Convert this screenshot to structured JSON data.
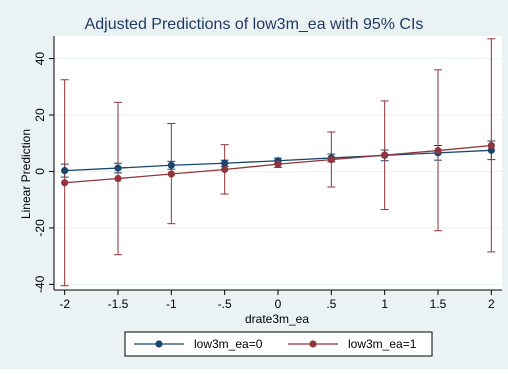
{
  "chart_data": {
    "type": "line",
    "title": "Adjusted Predictions of low3m_ea with 95% CIs",
    "xlabel": "drate3m_ea",
    "ylabel": "Linear Prediction",
    "x": [
      -2,
      -1.5,
      -1,
      -0.5,
      0,
      0.5,
      1,
      1.5,
      2
    ],
    "x_tick_labels": [
      "-2",
      "-1.5",
      "-1",
      "-.5",
      "0",
      ".5",
      "1",
      "1.5",
      "2"
    ],
    "y_ticks": [
      -40,
      -20,
      0,
      20,
      40
    ],
    "y_tick_labels": [
      "-40",
      "-20",
      "0",
      "20",
      "40"
    ],
    "xlim": [
      -2.1,
      2.1
    ],
    "ylim": [
      -42,
      48
    ],
    "grid": "horizontal",
    "legend_position": "bottom",
    "series": [
      {
        "name": "low3m_ea=0",
        "color": "#1a476f",
        "values": [
          0.3,
          1.2,
          2.2,
          2.9,
          3.8,
          4.8,
          5.7,
          6.6,
          7.5
        ],
        "ci_low": [
          -2.0,
          -0.5,
          0.8,
          1.8,
          2.9,
          3.4,
          3.8,
          4.0,
          4.2
        ],
        "ci_high": [
          2.6,
          2.9,
          3.6,
          4.0,
          4.7,
          6.2,
          7.6,
          9.2,
          10.8
        ]
      },
      {
        "name": "low3m_ea=1",
        "color": "#90353b",
        "values": [
          -4.0,
          -2.5,
          -0.9,
          0.7,
          2.6,
          4.2,
          5.8,
          7.4,
          9.2
        ],
        "ci_low": [
          -40.5,
          -29.5,
          -18.5,
          -8.0,
          1.4,
          -5.5,
          -13.5,
          -21.0,
          -28.5
        ],
        "ci_high": [
          32.5,
          24.5,
          17.0,
          9.5,
          3.8,
          14.0,
          25.0,
          36.0,
          47.0
        ]
      }
    ]
  }
}
